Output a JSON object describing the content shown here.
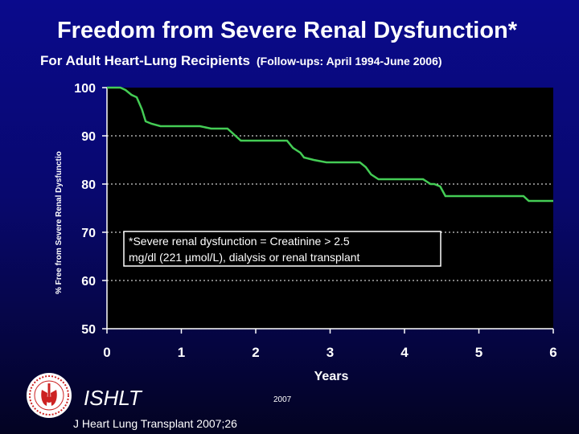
{
  "header": {
    "title": "Freedom from Severe Renal Dysfunction*",
    "subtitle": "For Adult Heart-Lung Recipients",
    "subtitle_note": "(Follow-ups: April 1994-June 2006)"
  },
  "footer": {
    "org": "ISHLT",
    "year": "2007",
    "journal": "J Heart Lung Transplant 2007;26"
  },
  "colors": {
    "line": "#44cc55",
    "plot_bg": "#000000",
    "text": "#ffffff"
  },
  "chart_data": {
    "type": "line",
    "title": "Freedom from Severe Renal Dysfunction*",
    "subtitle": "For Adult Heart-Lung Recipients (Follow-ups: April 1994-June 2006)",
    "xlabel": "Years",
    "ylabel": "% Free from Severe Renal Dysfunctio",
    "xlim": [
      0,
      6
    ],
    "ylim": [
      50,
      100
    ],
    "xticks": [
      0,
      1,
      2,
      3,
      4,
      5,
      6
    ],
    "yticks": [
      50,
      60,
      70,
      80,
      90,
      100
    ],
    "grid": "horizontal dotted",
    "legend": "none",
    "annotation": "*Severe renal dysfunction = Creatinine > 2.5 mg/dl (221 µmol/L), dialysis or renal transplant",
    "series": [
      {
        "x": [
          0,
          0.12,
          0.18,
          0.25,
          0.33,
          0.4,
          0.47,
          0.52,
          0.6,
          0.72,
          1.0,
          1.25,
          1.4,
          1.62,
          1.8,
          2.0,
          2.2,
          2.3,
          2.42,
          2.5,
          2.6,
          2.65,
          2.78,
          2.95,
          3.1,
          3.2,
          3.4,
          3.48,
          3.55,
          3.65,
          3.8,
          4.0,
          4.25,
          4.35,
          4.4,
          4.48,
          4.55,
          4.62,
          4.8,
          5.0,
          5.4,
          5.6,
          5.67,
          5.72,
          6.0
        ],
        "y": [
          100,
          100,
          100,
          99.5,
          98.5,
          98,
          95.5,
          93,
          92.5,
          92,
          92,
          92,
          91.5,
          91.5,
          89,
          89,
          89,
          89,
          89,
          87.5,
          86.5,
          85.5,
          85,
          84.5,
          84.5,
          84.5,
          84.5,
          83.5,
          82,
          81,
          81,
          81,
          81,
          80,
          80,
          79.5,
          77.5,
          77.5,
          77.5,
          77.5,
          77.5,
          77.5,
          76.5,
          76.5,
          76.5
        ]
      }
    ]
  }
}
